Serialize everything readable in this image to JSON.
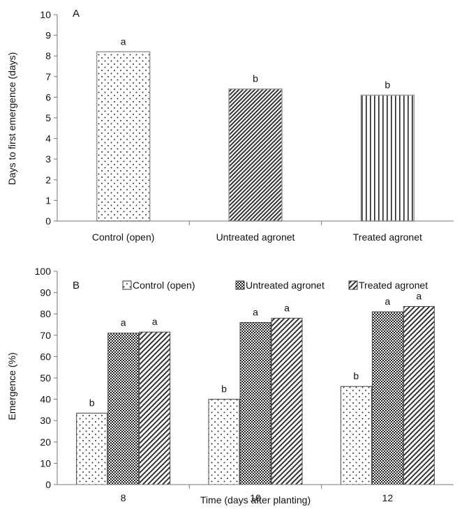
{
  "chart_data": [
    {
      "type": "bar",
      "panel_label": "A",
      "categories": [
        "Control (open)",
        "Untreated agronet",
        "Treated agronet"
      ],
      "values": [
        8.2,
        6.4,
        6.1
      ],
      "significance": [
        "a",
        "b",
        "b"
      ],
      "patterns": [
        "dots",
        "diag-dense",
        "vertical"
      ],
      "xlabel": "",
      "ylabel": "Days to first emergence (days)",
      "ylim": [
        0,
        10
      ],
      "yticks": [
        "0",
        "1",
        "2",
        "3",
        "4",
        "5",
        "6",
        "7",
        "8",
        "9",
        "10"
      ],
      "grid": false
    },
    {
      "type": "bar",
      "panel_label": "B",
      "categories": [
        "8",
        "10",
        "12"
      ],
      "series": [
        {
          "name": "Control (open)",
          "pattern": "dots",
          "values": [
            33.5,
            40,
            46
          ],
          "significance": [
            "b",
            "b",
            "b"
          ]
        },
        {
          "name": "Untreated agronet",
          "pattern": "checker",
          "values": [
            71,
            76,
            81
          ],
          "significance": [
            "a",
            "a",
            "a"
          ]
        },
        {
          "name": "Treated agronet",
          "pattern": "diag",
          "values": [
            71.5,
            78,
            83.5
          ],
          "significance": [
            "a",
            "a",
            "a"
          ]
        }
      ],
      "xlabel": "Time (days after planting)",
      "ylabel": "Emergence (%)",
      "ylim": [
        0,
        100
      ],
      "yticks": [
        "0",
        "10",
        "20",
        "30",
        "40",
        "50",
        "60",
        "70",
        "80",
        "90",
        "100"
      ],
      "legend": "top",
      "grid": false
    }
  ]
}
